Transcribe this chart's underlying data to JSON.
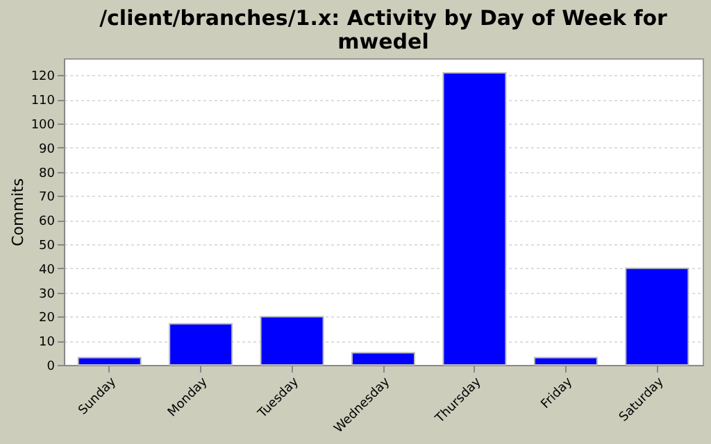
{
  "chart_data": {
    "type": "bar",
    "title": "/client/branches/1.x: Activity by Day of Week for mwedel",
    "ylabel": "Commits",
    "categories": [
      "Sunday",
      "Monday",
      "Tuesday",
      "Wednesday",
      "Thursday",
      "Friday",
      "Saturday"
    ],
    "values": [
      3,
      17,
      20,
      5,
      121,
      3,
      40
    ],
    "color": "#0000ff",
    "ylim": [
      0,
      127
    ],
    "yticks": [
      0,
      10,
      20,
      30,
      40,
      50,
      60,
      70,
      80,
      90,
      100,
      110,
      120
    ],
    "grid": "y"
  }
}
